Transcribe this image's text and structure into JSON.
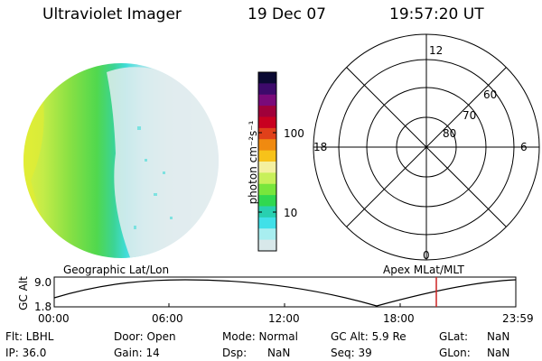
{
  "header": {
    "instrument": "Ultraviolet Imager",
    "date": "19 Dec 07",
    "time": "19:57:20 UT"
  },
  "colorbar": {
    "unit_label": "photon cm⁻²s⁻¹",
    "ticks": [
      "100",
      "10"
    ],
    "colors": [
      "#0b0a33",
      "#3d0a6b",
      "#7a0a7a",
      "#a0003a",
      "#c80020",
      "#e0401a",
      "#f08a10",
      "#f7c21a",
      "#f4f0a0",
      "#c8f05a",
      "#78e63c",
      "#30d850",
      "#28d0b0",
      "#40e0e8",
      "#a8eef0",
      "#d8e8ea"
    ]
  },
  "polar_plot": {
    "mlt_labels": [
      "12",
      "18",
      "6",
      "0"
    ],
    "lat_labels": [
      "60",
      "70",
      "80"
    ]
  },
  "timeline": {
    "ylabel": "GC Alt",
    "yticks": [
      "9.0",
      "1.8"
    ],
    "left_caption": "Geographic Lat/Lon",
    "right_caption": "Apex MLat/MLT",
    "xticks": [
      "00:00",
      "06:00",
      "12:00",
      "18:00",
      "23:59"
    ],
    "marker_color": "#cc2222"
  },
  "info_panel": {
    "filter": "Flt: LBHL",
    "ip": "IP: 36.0",
    "door": "Door: Open",
    "gain": "Gain: 14",
    "mode": "Mode: Normal",
    "dsp": "Dsp:",
    "dsp_value": "NaN",
    "gc_alt": "GC Alt: 5.9 Re",
    "seq": "Seq: 39",
    "glat": "GLat:",
    "glat_value": "NaN",
    "glon": "GLon:",
    "glon_value": "NaN"
  }
}
